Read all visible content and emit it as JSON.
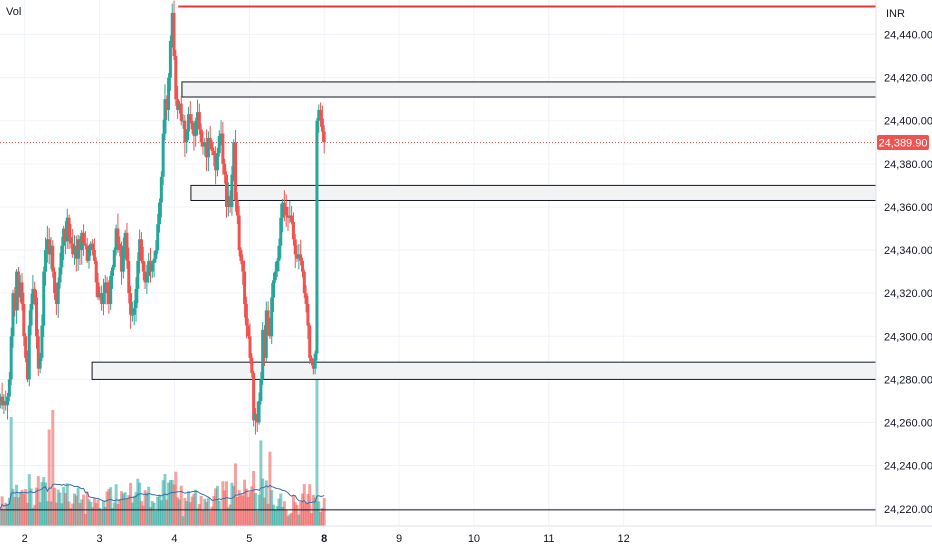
{
  "chart_data": {
    "type": "candlestick",
    "title": "",
    "volume_label": "Vol",
    "currency": "INR",
    "last_price": 24389.9,
    "last_price_label": "24,389.90",
    "ylim": [
      24212,
      24456
    ],
    "y_ticks": [
      {
        "v": 24440,
        "label": "24,440.00"
      },
      {
        "v": 24420,
        "label": "24,420.00"
      },
      {
        "v": 24400,
        "label": "24,400.00"
      },
      {
        "v": 24380,
        "label": "24,380.00"
      },
      {
        "v": 24360,
        "label": "24,360.00"
      },
      {
        "v": 24340,
        "label": "24,340.00"
      },
      {
        "v": 24320,
        "label": "24,320.00"
      },
      {
        "v": 24300,
        "label": "24,300.00"
      },
      {
        "v": 24280,
        "label": "24,280.00"
      },
      {
        "v": 24260,
        "label": "24,260.00"
      },
      {
        "v": 24240,
        "label": "24,240.00"
      },
      {
        "v": 24220,
        "label": "24,220.00"
      }
    ],
    "x_range": [
      1.67,
      13.37
    ],
    "x_ticks": [
      {
        "d": 2,
        "label": "2",
        "bold": false
      },
      {
        "d": 3,
        "label": "3",
        "bold": false
      },
      {
        "d": 4,
        "label": "4",
        "bold": false
      },
      {
        "d": 5,
        "label": "5",
        "bold": false
      },
      {
        "d": 6,
        "label": "8",
        "bold": true
      },
      {
        "d": 7,
        "label": "9",
        "bold": false
      },
      {
        "d": 8,
        "label": "10",
        "bold": false
      },
      {
        "d": 9,
        "label": "11",
        "bold": false
      },
      {
        "d": 10,
        "label": "12",
        "bold": false
      }
    ],
    "zones": [
      {
        "x1": 4.1,
        "x2": 13.37,
        "y1": 24411,
        "y2": 24418
      },
      {
        "x1": 4.22,
        "x2": 13.37,
        "y1": 24363,
        "y2": 24370
      },
      {
        "x1": 2.9,
        "x2": 13.37,
        "y1": 24280,
        "y2": 24288
      }
    ],
    "resistance_level": {
      "v": 24453,
      "x_start": 4.05
    },
    "support_level": {
      "v": 24219.5,
      "x_start": 1.67
    },
    "colors": {
      "up": "#26a69a",
      "down": "#ef5350",
      "zone": "#f2f3f5",
      "level": "#e53935",
      "ma": "#3d6ea8",
      "grid": "#f0f3fa"
    },
    "candles_close": [
      24270,
      24272,
      24268,
      24270,
      24268,
      24272,
      24280,
      24300,
      24320,
      24312,
      24330,
      24318,
      24325,
      24315,
      24300,
      24290,
      24280,
      24305,
      24315,
      24322,
      24318,
      24300,
      24285,
      24290,
      24305,
      24330,
      24340,
      24345,
      24338,
      24342,
      24330,
      24320,
      24315,
      24325,
      24332,
      24342,
      24350,
      24344,
      24355,
      24346,
      24343,
      24338,
      24342,
      24336,
      24345,
      24340,
      24348,
      24343,
      24342,
      24335,
      24340,
      24343,
      24340,
      24335,
      24325,
      24318,
      24320,
      24315,
      24320,
      24325,
      24321,
      24315,
      24328,
      24332,
      24340,
      24350,
      24343,
      24340,
      24330,
      24342,
      24348,
      24335,
      24320,
      24310,
      24310,
      24313,
      24322,
      24335,
      24345,
      24335,
      24330,
      24325,
      24328,
      24335,
      24330,
      24334,
      24336,
      24340,
      24352,
      24362,
      24374,
      24394,
      24410,
      24405,
      24420,
      24437,
      24450,
      24430,
      24410,
      24405,
      24408,
      24400,
      24400,
      24390,
      24395,
      24403,
      24400,
      24396,
      24393,
      24400,
      24404,
      24396,
      24390,
      24388,
      24390,
      24383,
      24392,
      24390,
      24386,
      24384,
      24377,
      24385,
      24393,
      24394,
      24380,
      24375,
      24360,
      24365,
      24360,
      24375,
      24390,
      24363,
      24356,
      24340,
      24335,
      24330,
      24315,
      24305,
      24300,
      24290,
      24283,
      24261,
      24264,
      24260,
      24270,
      24280,
      24303,
      24290,
      24312,
      24305,
      24300,
      24318,
      24326,
      24330,
      24335,
      24342,
      24355,
      24362,
      24360,
      24356,
      24355,
      24356,
      24353,
      24345,
      24338,
      24336,
      24338,
      24335,
      24330,
      24320,
      24315,
      24305,
      24290,
      24288,
      24285,
      24292,
      24400,
      24405,
      24401,
      24395,
      24390
    ]
  }
}
